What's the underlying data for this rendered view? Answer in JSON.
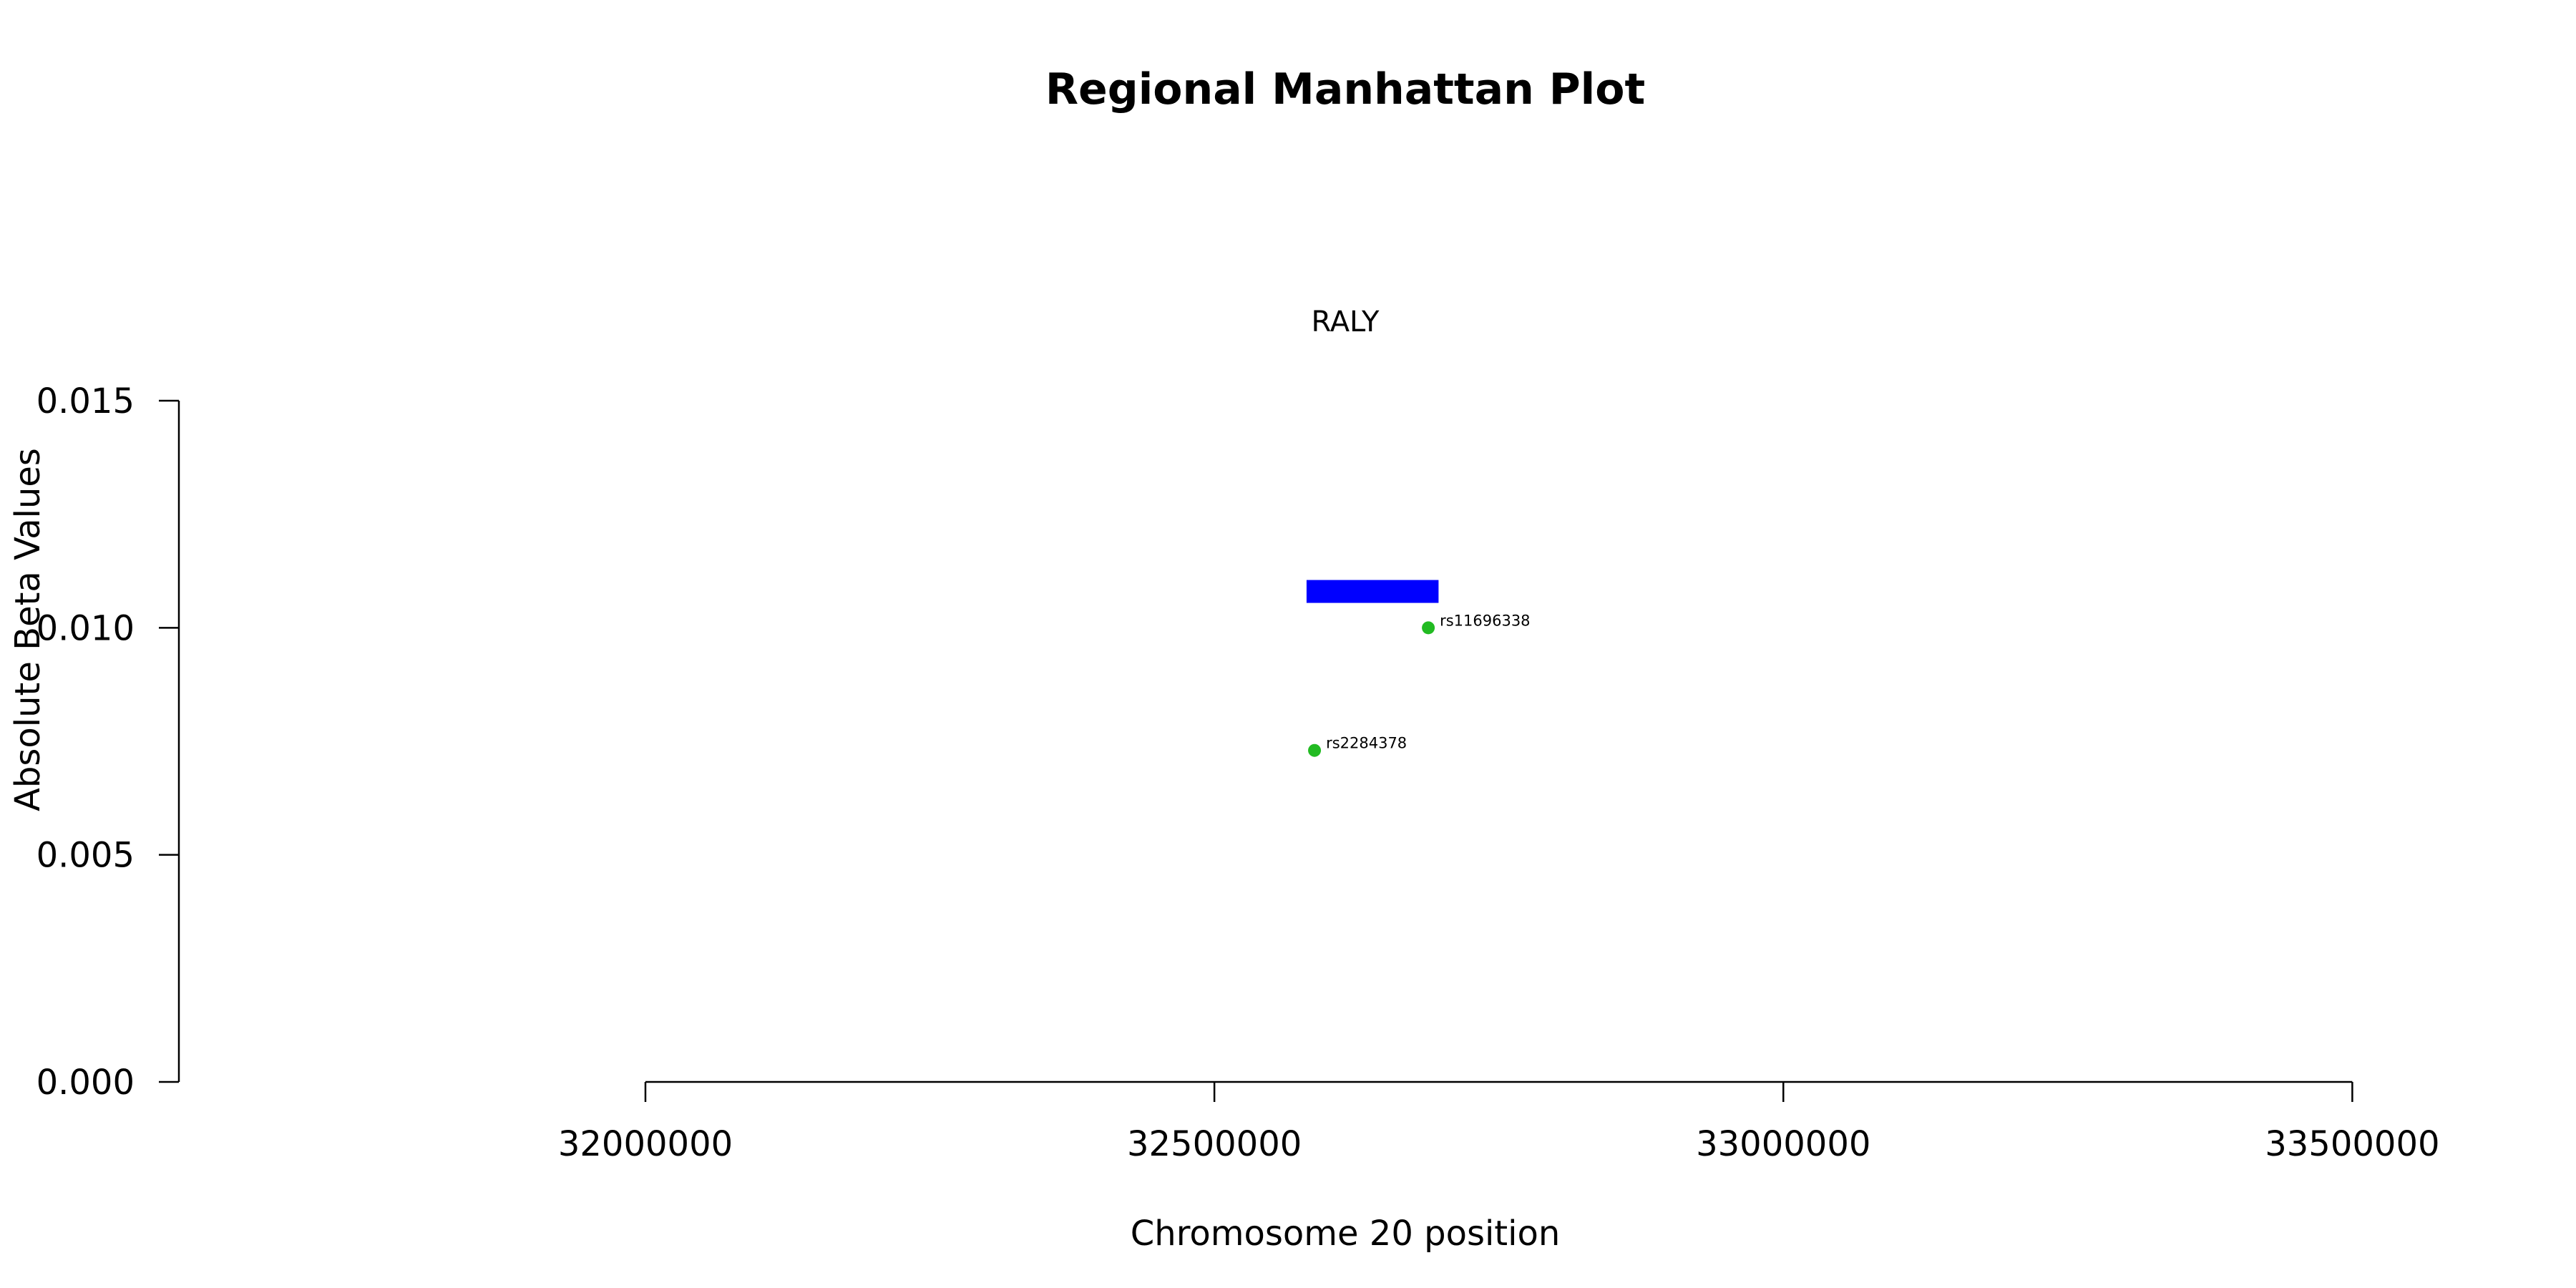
{
  "chart_data": {
    "type": "scatter",
    "title": "Regional Manhattan Plot",
    "xlabel": "Chromosome 20 position",
    "ylabel": "Absolute Beta Values",
    "xlim": [
      31590000,
      33640000
    ],
    "ylim": [
      0.0,
      0.015
    ],
    "x_axis_range": [
      32000000,
      33500000
    ],
    "xticks": [
      32000000,
      32500000,
      33000000,
      33500000
    ],
    "xtick_labels": [
      "32000000",
      "32500000",
      "33000000",
      "33500000"
    ],
    "yticks": [
      0.0,
      0.005,
      0.01,
      0.015
    ],
    "ytick_labels": [
      "0.000",
      "0.005",
      "0.010",
      "0.015"
    ],
    "grid": false,
    "gene": {
      "name": "RALY",
      "start": 32581000,
      "end": 32697000,
      "y": 0.0108,
      "color": "#0000ff"
    },
    "points": [
      {
        "label": "rs2284378",
        "x": 32588000,
        "y": 0.0073,
        "color": "#22bb22"
      },
      {
        "label": "rs11696338",
        "x": 32688000,
        "y": 0.01,
        "color": "#22bb22"
      }
    ]
  }
}
